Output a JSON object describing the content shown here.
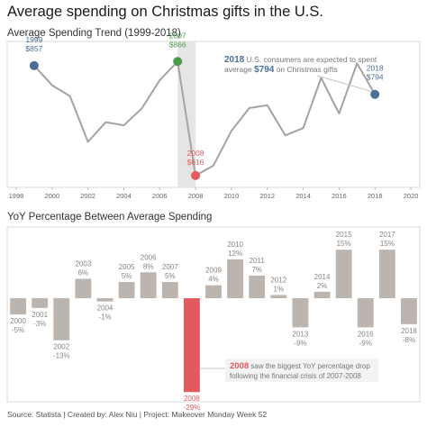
{
  "title": "Average spending on Christmas gifts in the U.S.",
  "source": "Source: Statista | Created by: Alex Niu | Project: Makeover Monday Week 52",
  "colors": {
    "line": "#a7a2a0",
    "bar": "#bcb4ae",
    "highlight": "#e05a5e",
    "blue": "#4b6e96",
    "green": "#4a9c4d",
    "band": "#e5e5e5",
    "text": "#555555"
  },
  "chart_data": [
    {
      "type": "line",
      "title": "Average Spending Trend (1999-2018)",
      "x": [
        1999,
        2000,
        2001,
        2002,
        2003,
        2004,
        2005,
        2006,
        2007,
        2008,
        2009,
        2010,
        2011,
        2012,
        2013,
        2014,
        2015,
        2016,
        2017,
        2018
      ],
      "y": [
        857,
        814,
        790,
        690,
        733,
        726,
        763,
        825,
        866,
        616,
        638,
        714,
        764,
        770,
        704,
        720,
        830,
        752,
        862,
        794
      ],
      "xlim": [
        1997.5,
        2020.5
      ],
      "ylim": [
        590,
        910
      ],
      "xticks": [
        1998,
        2000,
        2002,
        2004,
        2006,
        2008,
        2010,
        2012,
        2014,
        2016,
        2018,
        2020
      ],
      "highlight_band": [
        2007,
        2008
      ],
      "points": [
        {
          "year": "1999",
          "value": "$857",
          "x": 1999,
          "y": 857,
          "color": "#4b6e96"
        },
        {
          "year": "2007",
          "value": "$866",
          "x": 2007,
          "y": 866,
          "color": "#4a9c4d"
        },
        {
          "year": "2008",
          "value": "$616",
          "x": 2008,
          "y": 616,
          "color": "#e05a5e"
        },
        {
          "year": "2018",
          "value": "$794",
          "x": 2018,
          "y": 794,
          "color": "#4b6e96"
        }
      ],
      "annotation": {
        "bold": "2018",
        "line1": " U.S. consumers are expected to spent",
        "line2a": "average ",
        "line2b": "$794",
        "line2c": " on Christmas gifts"
      },
      "grid": false
    },
    {
      "type": "bar",
      "title": "YoY Percentage Between Average Spending",
      "categories": [
        "2000",
        "2001",
        "2002",
        "2003",
        "2004",
        "2005",
        "2006",
        "2007",
        "2008",
        "2009",
        "2010",
        "2011",
        "2012",
        "2013",
        "2014",
        "2015",
        "2016",
        "2017",
        "2018"
      ],
      "values": [
        -5,
        -3,
        -13,
        6,
        -1,
        5,
        8,
        5,
        -29,
        4,
        12,
        7,
        1,
        -9,
        2,
        15,
        -9,
        15,
        -8
      ],
      "labels": [
        "-5%",
        "-3%",
        "-13%",
        "6%",
        "-1%",
        "5%",
        "8%",
        "5%",
        "-29%",
        "4%",
        "12%",
        "7%",
        "1%",
        "-9%",
        "2%",
        "15%",
        "-9%",
        "15%",
        "-8%"
      ],
      "highlight": "2008",
      "annotation": {
        "bold": "2008",
        "line1": " saw the biggest YoY percentage drop",
        "line2": "following the financial crisis of 2007-2008"
      }
    }
  ]
}
